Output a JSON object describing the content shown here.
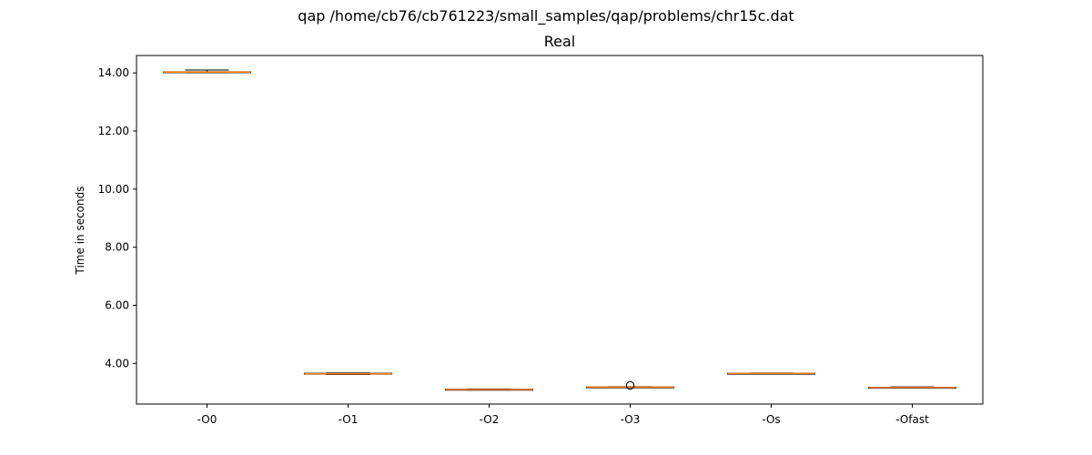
{
  "chart_data": {
    "type": "box",
    "suptitle": "qap /home/cb76/cb761223/small_samples/qap/problems/chr15c.dat",
    "title": "Real",
    "xlabel": "",
    "ylabel": "Time in seconds",
    "ylim": [
      2.6,
      14.6
    ],
    "yticks": [
      4.0,
      6.0,
      8.0,
      10.0,
      12.0,
      14.0
    ],
    "ytick_labels": [
      "4.00",
      "6.00",
      "8.00",
      "10.00",
      "12.00",
      "14.00"
    ],
    "grid": false,
    "categories": [
      "-O0",
      "-O1",
      "-O2",
      "-O3",
      "-Os",
      "-Ofast"
    ],
    "boxes": [
      {
        "whislo": 14.01,
        "q1": 14.02,
        "med": 14.03,
        "q3": 14.04,
        "whishi": 14.1,
        "fliers": []
      },
      {
        "whislo": 3.62,
        "q1": 3.63,
        "med": 3.64,
        "q3": 3.66,
        "whislo_": null,
        "whishi": 3.67,
        "fliers": []
      },
      {
        "whislo": 3.08,
        "q1": 3.09,
        "med": 3.1,
        "q3": 3.11,
        "whishi": 3.12,
        "fliers": []
      },
      {
        "whislo": 3.17,
        "q1": 3.18,
        "med": 3.185,
        "q3": 3.19,
        "whishi": 3.2,
        "fliers": [
          3.24
        ]
      },
      {
        "whislo": 3.64,
        "q1": 3.65,
        "med": 3.655,
        "q3": 3.66,
        "whishi": 3.67,
        "fliers": []
      },
      {
        "whislo": 3.15,
        "q1": 3.16,
        "med": 3.17,
        "q3": 3.18,
        "whishi": 3.19,
        "fliers": []
      }
    ],
    "colors": {
      "box": "#000000",
      "median": "#ff7f0e",
      "flier": "#000000",
      "axes": "#000000"
    }
  }
}
